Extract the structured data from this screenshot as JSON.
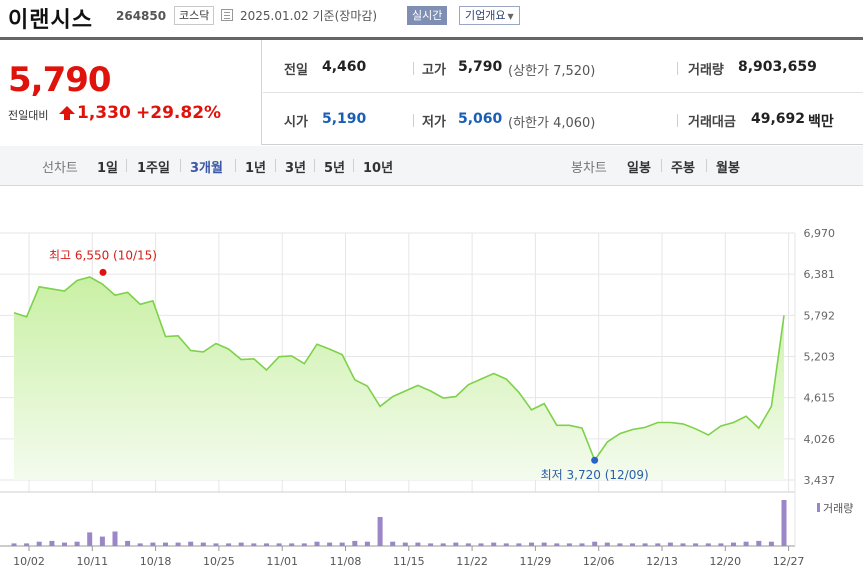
{
  "header": {
    "name": "이랜시스",
    "code": "264850",
    "market": "코스닥",
    "date": "2025.01.02  기준(장마감)",
    "realtime_label": "실시간",
    "corp_label": "기업개요"
  },
  "summary": {
    "price": "5,790",
    "compare_label": "전일대비",
    "change": "1,330",
    "change_pct": "+29.82%",
    "prev_label": "전일",
    "prev_value": "4,460",
    "high_label": "고가",
    "high_value": "5,790",
    "upper_limit": "(상한가 7,520)",
    "volume_label": "거래량",
    "volume_value": "8,903,659",
    "open_label": "시가",
    "open_value": "5,190",
    "low_label": "저가",
    "low_value": "5,060",
    "lower_limit": "(하한가 4,060)",
    "amount_label": "거래대금",
    "amount_value": "49,692",
    "amount_unit": "백만"
  },
  "tabs": {
    "line_label": "선차트",
    "periods": [
      "1일",
      "1주일",
      "3개월",
      "1년",
      "3년",
      "5년",
      "10년"
    ],
    "active_period": "3개월",
    "candle_label": "봉차트",
    "candles": [
      "일봉",
      "주봉",
      "월봉"
    ]
  },
  "colors": {
    "up": "#e0120c",
    "down": "#1a5fb4",
    "line": "#7ed14a",
    "fill_top": "#c9f0a4",
    "volume": "#9b86c8"
  },
  "chart_data": {
    "type": "area",
    "ylim": [
      3437,
      6970
    ],
    "y_ticks": [
      "6,970",
      "6,381",
      "5,792",
      "5,203",
      "4,615",
      "4,026",
      "3,437"
    ],
    "x_ticks": [
      "10/02",
      "10/11",
      "10/18",
      "10/25",
      "11/01",
      "11/08",
      "11/15",
      "11/22",
      "11/29",
      "12/06",
      "12/13",
      "12/20",
      "12/27"
    ],
    "high_annotation": "최고 6,550 (10/15)",
    "low_annotation": "최저 3,720 (12/09)",
    "high": 6550,
    "low": 3720,
    "volume_label": "거래량",
    "series": [
      {
        "values": [
          5830,
          5770,
          6200,
          6170,
          6140,
          6290,
          6340,
          6240,
          6080,
          6120,
          5950,
          6000,
          5490,
          5500,
          5290,
          5270,
          5390,
          5310,
          5160,
          5170,
          5010,
          5200,
          5210,
          5100,
          5380,
          5310,
          5230,
          4870,
          4780,
          4490,
          4630,
          4710,
          4790,
          4710,
          4610,
          4630,
          4800,
          4880,
          4960,
          4880,
          4690,
          4440,
          4530,
          4220,
          4220,
          4180,
          3720,
          3980,
          4100,
          4160,
          4190,
          4260,
          4260,
          4240,
          4170,
          4080,
          4210,
          4260,
          4350,
          4180,
          4490,
          5790
        ]
      }
    ],
    "volume": [
      3,
      3,
      5,
      6,
      4,
      5,
      16,
      11,
      17,
      6,
      3,
      4,
      4,
      4,
      5,
      4,
      3,
      3,
      4,
      3,
      3,
      3,
      3,
      3,
      5,
      4,
      4,
      6,
      5,
      34,
      5,
      4,
      4,
      3,
      3,
      4,
      3,
      3,
      4,
      3,
      3,
      4,
      4,
      3,
      3,
      3,
      5,
      4,
      3,
      3,
      3,
      3,
      4,
      3,
      3,
      3,
      3,
      4,
      5,
      6,
      5,
      54
    ]
  }
}
